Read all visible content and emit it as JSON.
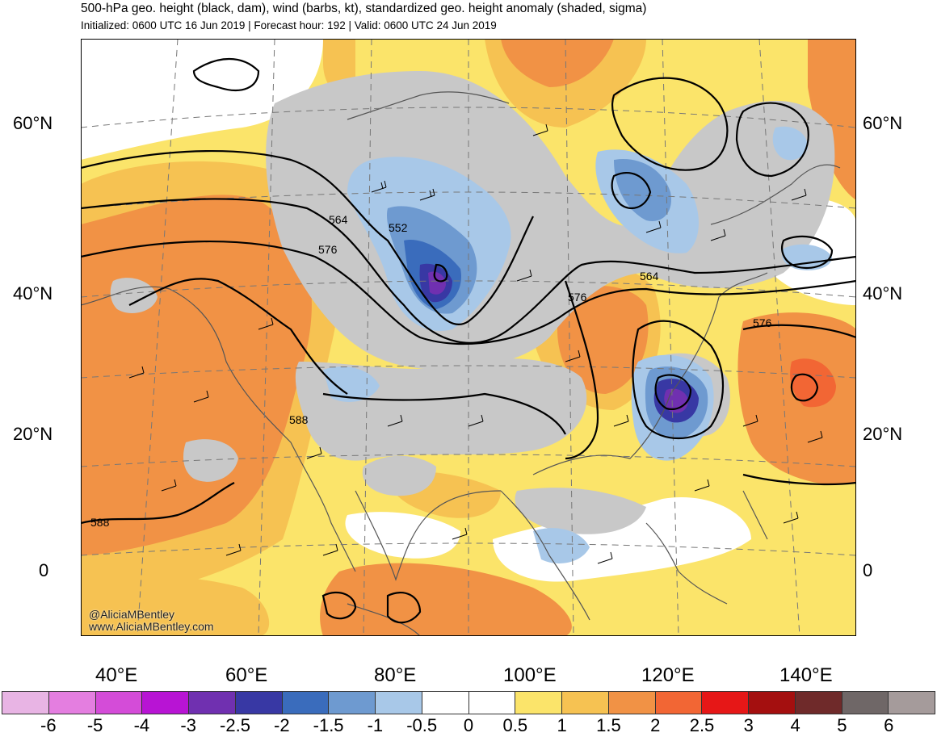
{
  "header": {
    "title": "500-hPa geo. height (black, dam), wind (barbs, kt), standardized geo. height anomaly (shaded, sigma)",
    "subtitle": "Initialized: 0600 UTC 16 Jun 2019 | Forecast hour: 192 | Valid: 0600 UTC 24 Jun 2019"
  },
  "map": {
    "latitude_labels": [
      "60°N",
      "40°N",
      "20°N",
      "0"
    ],
    "longitude_labels": [
      "40°E",
      "60°E",
      "80°E",
      "100°E",
      "120°E",
      "140°E"
    ],
    "contour_labels": [
      "552",
      "564",
      "576",
      "588",
      "564",
      "576",
      "576",
      "588"
    ],
    "credit_handle": "@AliciaMBentley",
    "credit_site": "www.AliciaMBentley.com"
  },
  "colorbar": {
    "tick_labels": [
      "-6",
      "-5",
      "-4",
      "-3",
      "-2.5",
      "-2",
      "-1.5",
      "-1",
      "-0.5",
      "0",
      "0.5",
      "1",
      "1.5",
      "2",
      "2.5",
      "3",
      "4",
      "5",
      "6"
    ],
    "colors": [
      "#e8b4e4",
      "#e47ee0",
      "#d44cd8",
      "#b814d4",
      "#7030b0",
      "#3838a4",
      "#3a6cbc",
      "#6e9ad0",
      "#a8c8e8",
      "#ffffff",
      "#ffffff",
      "#fbe46a",
      "#f6c252",
      "#f19245",
      "#f26634",
      "#e61717",
      "#a40f0f",
      "#6f2a2a",
      "#6f6767",
      "#a59b9b"
    ]
  },
  "colors": {
    "neutral_gray": "#c8c8c8",
    "contour": "#000000",
    "coastline": "#555555"
  }
}
